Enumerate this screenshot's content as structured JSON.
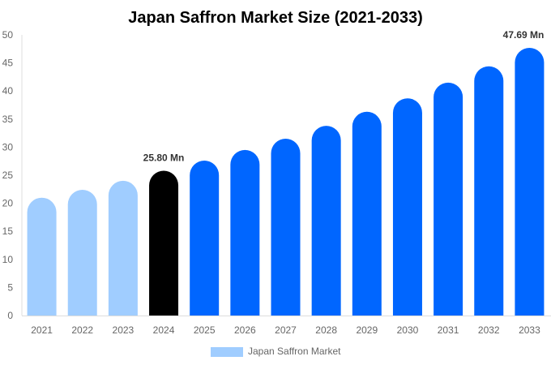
{
  "chart_data": {
    "type": "bar",
    "title": "Japan Saffron Market Size (2021-2033)",
    "xlabel": "",
    "ylabel": "",
    "ylim": [
      0,
      50
    ],
    "yticks": [
      0,
      5,
      10,
      15,
      20,
      25,
      30,
      35,
      40,
      45,
      50
    ],
    "categories": [
      "2021",
      "2022",
      "2023",
      "2024",
      "2025",
      "2026",
      "2027",
      "2028",
      "2029",
      "2030",
      "2031",
      "2032",
      "2033"
    ],
    "series": [
      {
        "name": "Japan Saffron Market",
        "values": [
          21.0,
          22.4,
          24.0,
          25.8,
          27.6,
          29.5,
          31.5,
          33.8,
          36.3,
          38.7,
          41.5,
          44.4,
          47.69
        ]
      }
    ],
    "bar_colors": [
      "#a0cdff",
      "#a0cdff",
      "#a0cdff",
      "#000000",
      "#0066ff",
      "#0066ff",
      "#0066ff",
      "#0066ff",
      "#0066ff",
      "#0066ff",
      "#0066ff",
      "#0066ff",
      "#0066ff"
    ],
    "annotations": [
      {
        "category": "2024",
        "text": "25.80 Mn"
      },
      {
        "category": "2033",
        "text": "47.69 Mn"
      }
    ],
    "grid": false,
    "legend_position": "bottom",
    "legend_color": "#a0cdff"
  }
}
